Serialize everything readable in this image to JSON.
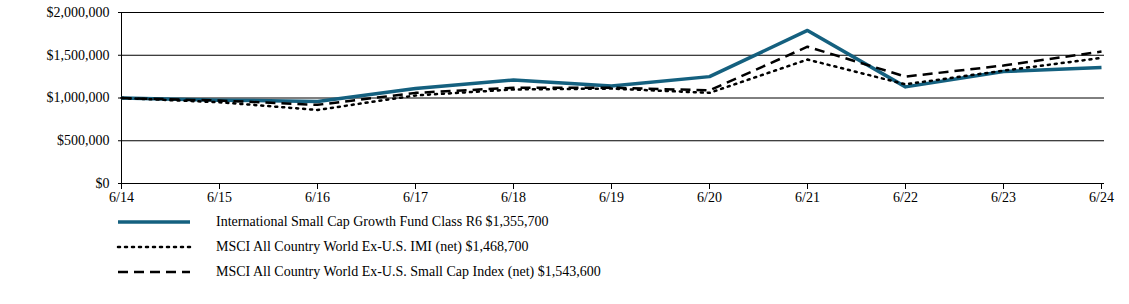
{
  "chart_data": {
    "type": "line",
    "categories": [
      "6/14",
      "6/15",
      "6/16",
      "6/17",
      "6/18",
      "6/19",
      "6/20",
      "6/21",
      "6/22",
      "6/23",
      "6/24"
    ],
    "series": [
      {
        "name": "International Small Cap Growth Fund Class R6 $1,355,700",
        "color": "#14607f",
        "line_style": "solid",
        "values": [
          1000000,
          975000,
          960000,
          1110000,
          1210000,
          1140000,
          1250000,
          1790000,
          1130000,
          1310000,
          1355700
        ]
      },
      {
        "name": "MSCI All Country World Ex-U.S. IMI (net) $1,468,700",
        "color": "#000000",
        "line_style": "dotted",
        "values": [
          1000000,
          950000,
          860000,
          1030000,
          1100000,
          1110000,
          1060000,
          1450000,
          1160000,
          1320000,
          1468700
        ]
      },
      {
        "name": "MSCI All Country World Ex-U.S. Small Cap Index (net) $1,543,600",
        "color": "#000000",
        "line_style": "dashed",
        "values": [
          1000000,
          970000,
          920000,
          1060000,
          1120000,
          1120000,
          1090000,
          1600000,
          1250000,
          1380000,
          1543600
        ]
      }
    ],
    "ylim": [
      0,
      2000000
    ],
    "yticks": [
      {
        "value": 0,
        "label": "$0"
      },
      {
        "value": 500000,
        "label": "$500,000"
      },
      {
        "value": 1000000,
        "label": "$1,000,000"
      },
      {
        "value": 1500000,
        "label": "$1,500,000"
      },
      {
        "value": 2000000,
        "label": "$2,000,000"
      }
    ],
    "grid": true,
    "legend": "bottom"
  }
}
